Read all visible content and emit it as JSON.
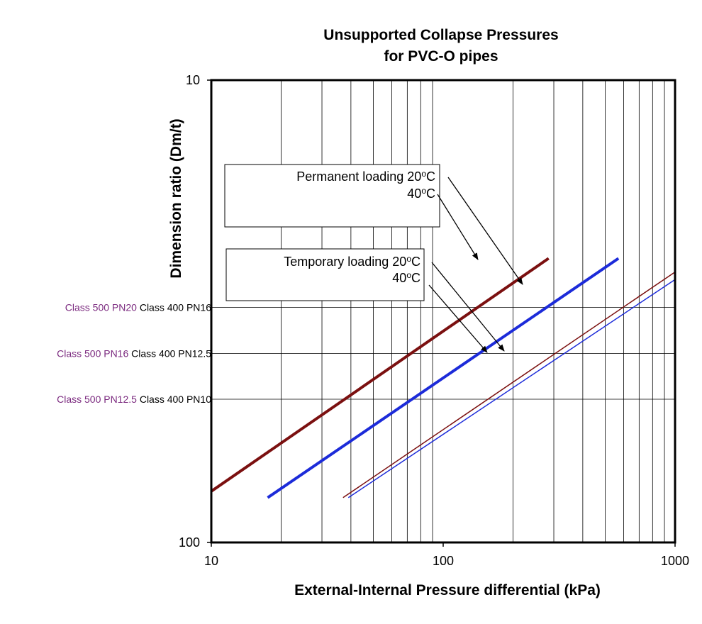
{
  "chart_data": {
    "type": "line",
    "title": [
      "Unsupported Collapse Pressures",
      "for PVC-O pipes"
    ],
    "xlabel": "External-Internal Pressure differential (kPa)",
    "ylabel": "Dimension ratio (Dm/t)",
    "xscale": "log",
    "yscale": "log",
    "yreversed": true,
    "xlim": [
      10,
      1000
    ],
    "ylim": [
      10,
      100
    ],
    "xticks": [
      {
        "value": 10,
        "label": "10"
      },
      {
        "value": 100,
        "label": "100"
      },
      {
        "value": 1000,
        "label": "1000"
      }
    ],
    "yticks": [
      {
        "value": 10,
        "label": "10"
      },
      {
        "value": 100,
        "label": "100"
      }
    ],
    "grid_x": true,
    "grid_y_values": [
      31,
      39,
      49
    ],
    "y_category_labels": [
      {
        "value": 31,
        "class500": "Class 500 PN20",
        "class400": "Class 400 PN16"
      },
      {
        "value": 39,
        "class500": "Class 500 PN16",
        "class400": "Class 400 PN12.5"
      },
      {
        "value": 49,
        "class500": "Class 500 PN12.5",
        "class400": "Class 400 PN10"
      }
    ],
    "series": [
      {
        "name": "Permanent loading 20°C",
        "color": "#7b1010",
        "width": "thick",
        "x": [
          10,
          285
        ],
        "y": [
          77.5,
          24.3
        ]
      },
      {
        "name": "Permanent loading 40°C",
        "color": "#1c2bd9",
        "width": "thick",
        "x": [
          17.5,
          570
        ],
        "y": [
          80,
          24.3
        ]
      },
      {
        "name": "Temporary loading 20°C",
        "color": "#7b1010",
        "width": "thin",
        "x": [
          37,
          1000
        ],
        "y": [
          80,
          26
        ]
      },
      {
        "name": "Temporary loading 40°C",
        "color": "#1c2bd9",
        "width": "thin",
        "x": [
          39,
          1000
        ],
        "y": [
          80,
          27
        ]
      }
    ],
    "annotations": {
      "permanent": {
        "line1": "Permanent loading 20",
        "sup": "o",
        "unit": "C",
        "line2": "40",
        "location": "upper-left"
      },
      "temporary": {
        "line1": "Temporary loading 20",
        "sup": "o",
        "unit": "C",
        "line2": "40",
        "location": "middle-left"
      }
    }
  }
}
